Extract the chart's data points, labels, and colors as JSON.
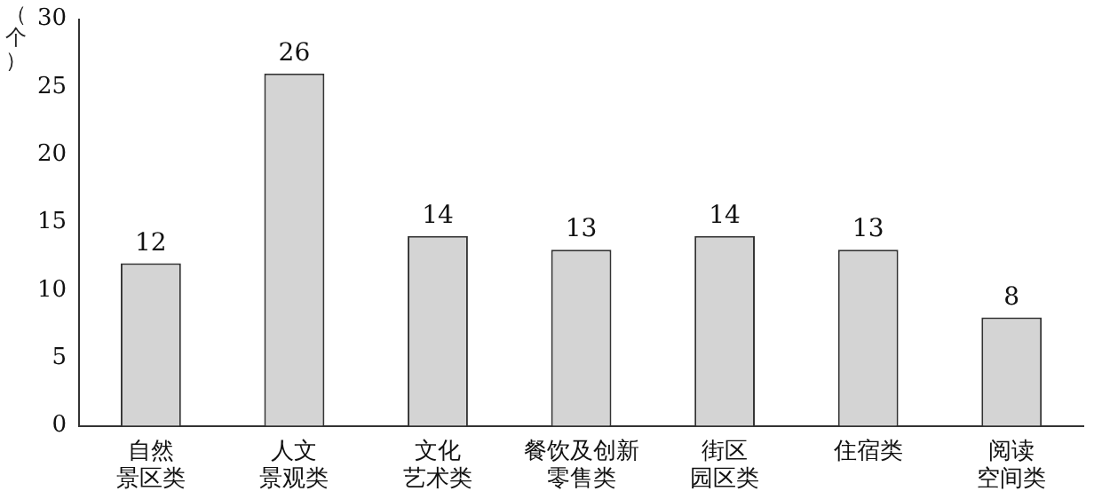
{
  "chart_data": {
    "type": "bar",
    "ylabel": "（个）",
    "categories": [
      "自然景区类",
      "人文景观类",
      "文化艺术类",
      "餐饮及创新零售类",
      "街区园区类",
      "住宿类",
      "阅读空间类"
    ],
    "values": [
      12,
      26,
      14,
      13,
      14,
      13,
      8
    ],
    "color": "#d4d4d4",
    "ylim": [
      0,
      30
    ],
    "yticks": [
      0,
      5,
      10,
      15,
      20,
      25,
      30
    ],
    "grid": false,
    "legend": false,
    "data_labels": true
  }
}
